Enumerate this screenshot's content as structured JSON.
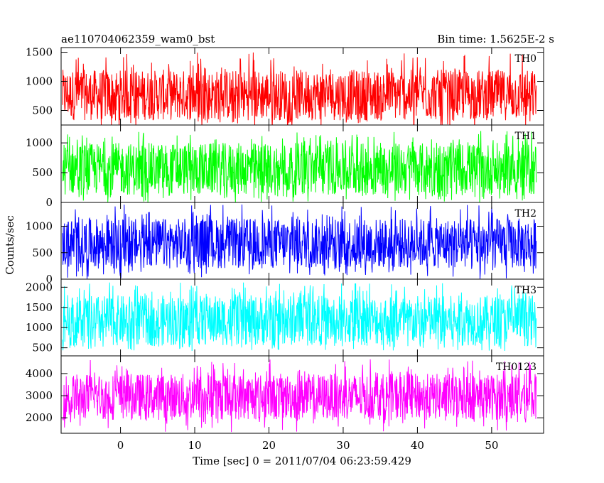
{
  "header": {
    "left_title": "ae110704062359_wam0_bst",
    "right_title": "Bin time: 1.5625E-2 s"
  },
  "chart_data": {
    "type": "line",
    "title": "ae110704062359_wam0_bst",
    "subtitle": "Bin time: 1.5625E-2 s",
    "xlabel": "Time [sec] 0 = 2011/07/04 06:23:59.429",
    "ylabel": "Counts/sec",
    "xlim": [
      -8,
      57
    ],
    "x_ticks": [
      0,
      10,
      20,
      30,
      40,
      50
    ],
    "x_tick_labels": [
      "0",
      "10",
      "20",
      "30",
      "40",
      "50"
    ],
    "data_x_range": [
      -7.8,
      56.0
    ],
    "grid": false,
    "panels": [
      {
        "name": "TH0",
        "color": "#ff0000",
        "ylim": [
          250,
          1580
        ],
        "y_ticks": [
          500,
          1000,
          1500
        ],
        "y_tick_labels": [
          "500",
          "1000",
          "1500"
        ],
        "mean": 750,
        "band": [
          330,
          1200
        ],
        "spike_max": 1520,
        "spike_min": 180
      },
      {
        "name": "TH1",
        "color": "#00ff00",
        "ylim": [
          0,
          1300
        ],
        "y_ticks": [
          0,
          500,
          1000
        ],
        "y_tick_labels": [
          "0",
          "500",
          "1000"
        ],
        "mean": 550,
        "band": [
          120,
          1000
        ],
        "spike_max": 1200,
        "spike_min": 0
      },
      {
        "name": "TH2",
        "color": "#0000ff",
        "ylim": [
          0,
          1450
        ],
        "y_ticks": [
          0,
          500,
          1000
        ],
        "y_tick_labels": [
          "0",
          "500",
          "1000"
        ],
        "mean": 680,
        "band": [
          200,
          1150
        ],
        "spike_max": 1420,
        "spike_min": 0
      },
      {
        "name": "TH3",
        "color": "#00ffff",
        "ylim": [
          300,
          2200
        ],
        "y_ticks": [
          500,
          1000,
          1500,
          2000
        ],
        "y_tick_labels": [
          "500",
          "1000",
          "1500",
          "2000"
        ],
        "mean": 1200,
        "band": [
          550,
          1800
        ],
        "spike_max": 2120,
        "spike_min": 420
      },
      {
        "name": "TH0123",
        "color": "#ff00ff",
        "ylim": [
          1300,
          4800
        ],
        "y_ticks": [
          2000,
          3000,
          4000
        ],
        "y_tick_labels": [
          "2000",
          "3000",
          "4000"
        ],
        "mean": 3050,
        "band": [
          1900,
          4000
        ],
        "spike_max": 4650,
        "spike_min": 1350
      }
    ]
  }
}
